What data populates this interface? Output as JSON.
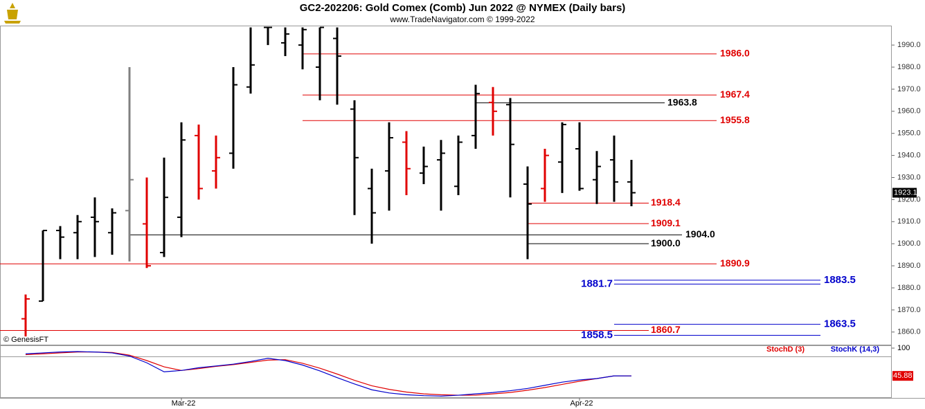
{
  "chart_data": [
    {
      "type": "ohlc",
      "title": "GC2-202206:  Gold Comex (Comb) Jun 2022 @ NYMEX  (Daily bars)",
      "subtitle": "www.TradeNavigator.com © 1999-2022",
      "watermark": "© GenesisFT",
      "categories": [
        null,
        null,
        null,
        null,
        null,
        null,
        null,
        null,
        null,
        "Mar-22",
        null,
        null,
        null,
        null,
        null,
        null,
        null,
        null,
        null,
        null,
        null,
        null,
        null,
        null,
        null,
        null,
        null,
        null,
        null,
        null,
        null,
        null,
        "Apr-22",
        null,
        null,
        null
      ],
      "open": [
        1866,
        1874,
        1906,
        1905,
        1912,
        1905,
        1915,
        1909,
        1896,
        1912,
        1949,
        1933,
        1941,
        1971,
        1998,
        1991,
        1990,
        1980,
        1993,
        1961,
        1925,
        1933,
        1946,
        1932,
        1938,
        1926,
        1949,
        1964,
        1963,
        1927,
        1925,
        1937,
        1943,
        1929,
        1938,
        1928
      ],
      "high": [
        1877,
        1906,
        1908,
        1913,
        1921,
        1916,
        1980,
        1930,
        1939,
        1955,
        1954,
        1949,
        1980,
        1998,
        1998,
        1998,
        1998,
        1998,
        1998,
        1965,
        1934,
        1955,
        1951,
        1944,
        1947,
        1949,
        1972,
        1971,
        1966,
        1935,
        1943,
        1955,
        1955,
        1942,
        1949,
        1938
      ],
      "low": [
        1858,
        1874,
        1893,
        1893,
        1894,
        1895,
        1892,
        1889,
        1894,
        1903,
        1920,
        1925,
        1934,
        1968,
        1990,
        1985,
        1979,
        1965,
        1963,
        1913,
        1900,
        1915,
        1922,
        1927,
        1915,
        1922,
        1943,
        1949,
        1921,
        1893,
        1919,
        1923,
        1924,
        1918,
        1919,
        1917
      ],
      "close": [
        1875,
        1906,
        1903,
        1910,
        1910,
        1914,
        1929,
        1890,
        1921,
        1947,
        1925,
        1939,
        1972,
        1981,
        1998,
        1995,
        1997,
        1998,
        1985,
        1939,
        1914,
        1948,
        1934,
        1935,
        1941,
        1946,
        1968,
        1960,
        1945,
        1918,
        1940,
        1954,
        1925,
        1935,
        1928,
        1923.1
      ],
      "colors": [
        "#e00000",
        "#000000",
        "#000000",
        "#000000",
        "#000000",
        "#000000",
        "#808080",
        "#e00000",
        "#000000",
        "#000000",
        "#e00000",
        "#e00000",
        "#000000",
        "#000000",
        "#000000",
        "#000000",
        "#000000",
        "#000000",
        "#000000",
        "#000000",
        "#000000",
        "#000000",
        "#e00000",
        "#000000",
        "#000000",
        "#000000",
        "#000000",
        "#e00000",
        "#000000",
        "#000000",
        "#e00000",
        "#000000",
        "#000000",
        "#000000",
        "#000000",
        "#000000"
      ],
      "ylim": [
        1854.6,
        1998.5
      ],
      "yticks": [
        {
          "value": 1860,
          "label": "1860.0"
        },
        {
          "value": 1870,
          "label": "1870.0"
        },
        {
          "value": 1880,
          "label": "1880.0"
        },
        {
          "value": 1890,
          "label": "1890.0"
        },
        {
          "value": 1900,
          "label": "1900.0"
        },
        {
          "value": 1910,
          "label": "1910.0"
        },
        {
          "value": 1920,
          "label": "1920.0"
        },
        {
          "value": 1930,
          "label": "1930.0"
        },
        {
          "value": 1940,
          "label": "1940.0"
        },
        {
          "value": 1950,
          "label": "1950.0"
        },
        {
          "value": 1960,
          "label": "1960.0"
        },
        {
          "value": 1970,
          "label": "1970.0"
        },
        {
          "value": 1980,
          "label": "1980.0"
        },
        {
          "value": 1990,
          "label": "1990.0"
        }
      ],
      "levels": [
        {
          "value": 1986,
          "label": "1986.0",
          "color": "#e00000"
        },
        {
          "value": 1967.4,
          "label": "1967.4",
          "color": "#e00000"
        },
        {
          "value": 1963.8,
          "label": "1963.8",
          "color": "#000000"
        },
        {
          "value": 1955.8,
          "label": "1955.8",
          "color": "#e00000"
        },
        {
          "value": 1918.4,
          "label": "1918.4",
          "color": "#e00000"
        },
        {
          "value": 1909.1,
          "label": "1909.1",
          "color": "#e00000"
        },
        {
          "value": 1904,
          "label": "1904.0",
          "color": "#000000"
        },
        {
          "value": 1900,
          "label": "1900.0",
          "color": "#000000"
        },
        {
          "value": 1890.9,
          "label": "1890.9",
          "color": "#e00000"
        },
        {
          "value": 1883.5,
          "label": "1883.5",
          "color": "#0000cc"
        },
        {
          "value": 1881.7,
          "label": "1881.7",
          "color": "#0000cc"
        },
        {
          "value": 1863.5,
          "label": "1863.5",
          "color": "#0000cc"
        },
        {
          "value": 1860.7,
          "label": "1860.7",
          "color": "#e00000"
        },
        {
          "value": 1858.5,
          "label": "1858.5",
          "color": "#0000cc"
        }
      ]
    },
    {
      "type": "line",
      "ylim": [
        0,
        100
      ],
      "yticks": [
        100
      ],
      "series": [
        {
          "name": "StochD (3)",
          "color": "#e00000",
          "values": [
            93,
            95,
            97,
            99,
            99,
            98,
            92,
            80,
            66,
            58,
            62,
            67,
            71,
            76,
            81,
            82,
            74,
            63,
            50,
            36,
            24,
            16,
            10,
            6,
            4,
            3,
            3,
            6,
            9,
            14,
            20,
            27,
            34,
            40,
            46,
            46
          ]
        },
        {
          "name": "StochK (14,3)",
          "color": "#0000cc",
          "values": [
            95,
            97,
            99,
            100,
            99,
            97,
            90,
            75,
            55,
            58,
            64,
            68,
            72,
            78,
            85,
            80,
            70,
            57,
            42,
            28,
            15,
            8,
            4,
            2,
            1,
            3,
            6,
            9,
            13,
            18,
            25,
            32,
            37,
            40,
            46,
            45.88
          ]
        }
      ]
    }
  ]
}
